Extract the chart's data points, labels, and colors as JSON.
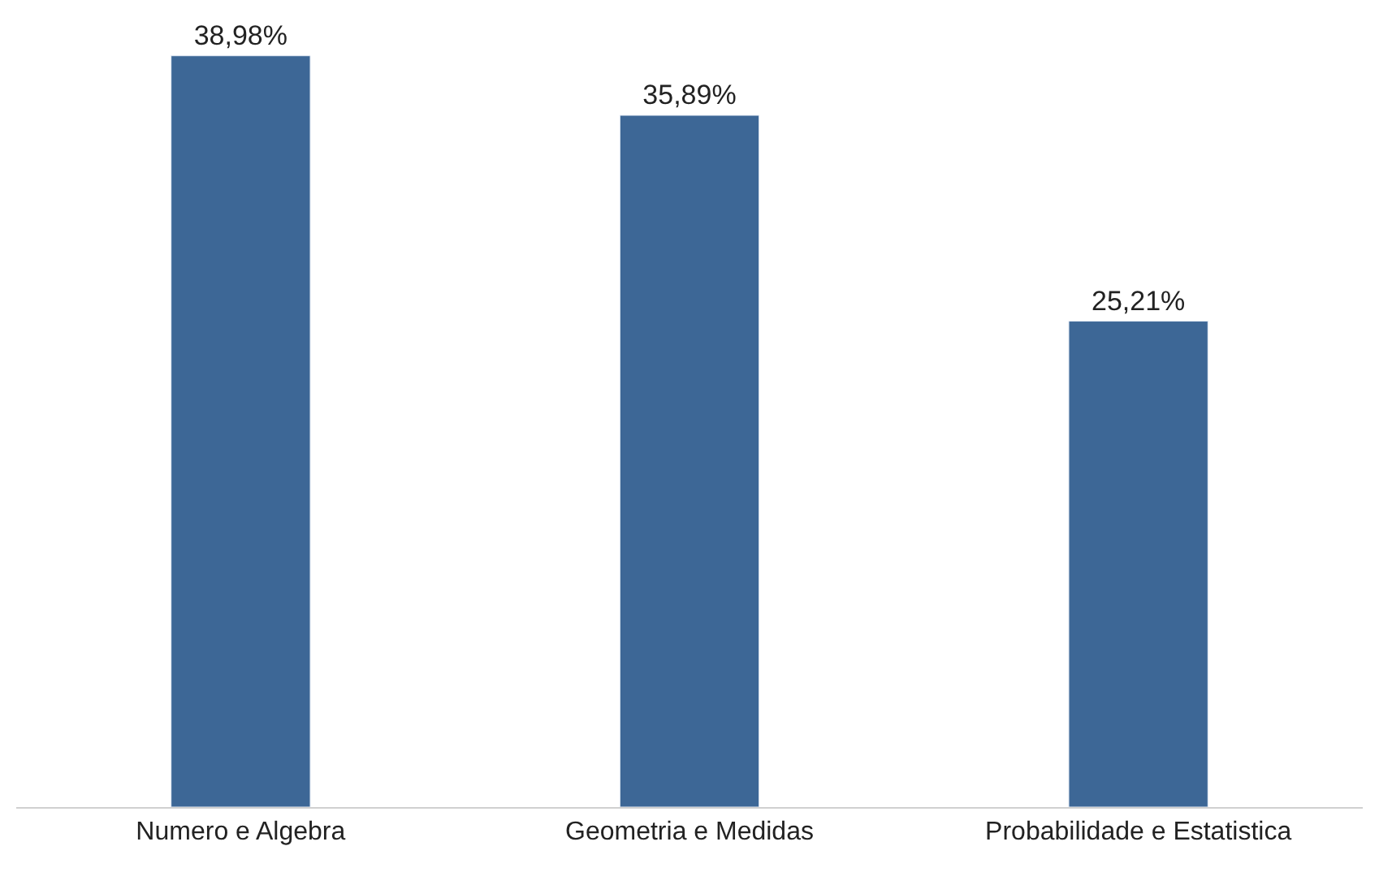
{
  "chart_data": {
    "type": "bar",
    "categories": [
      "Numero e Algebra",
      "Geometria e Medidas",
      "Probabilidade e Estatistica"
    ],
    "values": [
      38.98,
      35.89,
      25.21
    ],
    "value_labels": [
      "38,98%",
      "35,89%",
      "25,21%"
    ],
    "color": "#3d6796",
    "tick_labels": "x"
  }
}
